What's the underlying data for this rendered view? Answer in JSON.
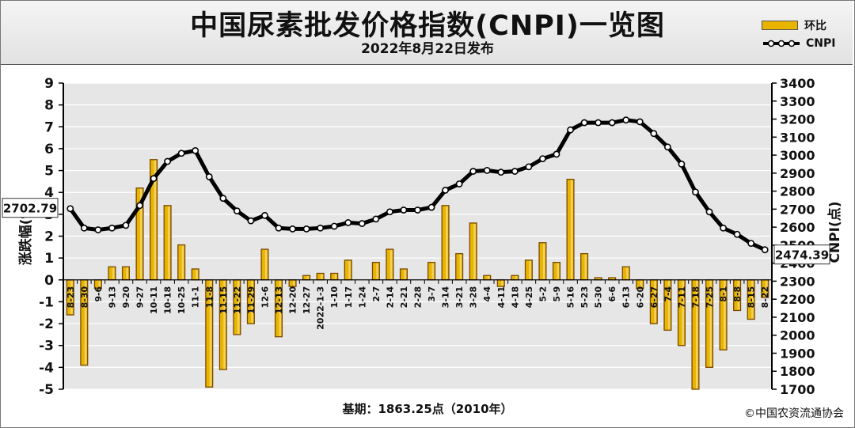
{
  "header": {
    "title": "中国尿素批发价格指数(CNPI)一览图",
    "subtitle": "2022年8月22日发布"
  },
  "legend": {
    "bar_label": "环比",
    "line_label": "CNPI"
  },
  "footer": {
    "base": "基期：1863.25点（2010年）",
    "copyright": "©中国农资流通协会"
  },
  "colors": {
    "bar_fill": "#e8b400",
    "bar_dark": "#7a4a00",
    "line": "#000000",
    "marker": "#ffffff",
    "plot_bg": "#e6e6e6"
  },
  "chart_data": {
    "type": "bar+line",
    "x_labels": [
      "8-23",
      "8-30",
      "9-6",
      "9-13",
      "9-20",
      "9-27",
      "10-11",
      "10-18",
      "10-25",
      "11-1",
      "11-8",
      "11-15",
      "11-22",
      "11-29",
      "12-6",
      "12-13",
      "12-20",
      "12-27",
      "2022-1-3",
      "1-10",
      "1-17",
      "1-24",
      "2-7",
      "2-14",
      "2-21",
      "2-28",
      "3-7",
      "3-14",
      "3-21",
      "3-28",
      "4-4",
      "4-11",
      "4-18",
      "4-25",
      "5-2",
      "5-9",
      "5-16",
      "5-23",
      "5-30",
      "6-6",
      "6-13",
      "6-20",
      "6-27",
      "7-4",
      "7-11",
      "7-18",
      "7-25",
      "8-1",
      "8-8",
      "8-15",
      "8-22"
    ],
    "series": [
      {
        "name": "环比",
        "axis": "left",
        "type": "bar",
        "values": [
          -1.6,
          -3.9,
          -0.4,
          0.6,
          0.6,
          4.2,
          5.5,
          3.4,
          1.6,
          0.5,
          -4.9,
          -4.1,
          -2.5,
          -2.0,
          1.4,
          -2.6,
          -0.3,
          0.2,
          0.3,
          0.3,
          0.9,
          0.0,
          0.8,
          1.4,
          0.5,
          0.0,
          0.8,
          3.4,
          1.2,
          2.6,
          0.2,
          -0.3,
          0.2,
          0.9,
          1.7,
          0.8,
          4.6,
          1.2,
          0.1,
          0.1,
          0.6,
          -0.4,
          -2.0,
          -2.3,
          -3.0,
          -5.0,
          -4.0,
          -3.2,
          -1.4,
          -1.8,
          -0.8
        ]
      },
      {
        "name": "CNPI",
        "axis": "right",
        "type": "line",
        "values": [
          2702.79,
          2595,
          2585,
          2595,
          2610,
          2720,
          2870,
          2965,
          3010,
          3025,
          2880,
          2760,
          2690,
          2635,
          2665,
          2595,
          2590,
          2590,
          2595,
          2605,
          2625,
          2620,
          2645,
          2685,
          2695,
          2695,
          2710,
          2805,
          2840,
          2910,
          2915,
          2905,
          2910,
          2935,
          2980,
          3005,
          3140,
          3180,
          3180,
          3180,
          3195,
          3185,
          3120,
          3045,
          2950,
          2795,
          2685,
          2595,
          2560,
          2510,
          2474.39
        ]
      }
    ],
    "y_left": {
      "label": "涨跌幅(%)",
      "min": -5,
      "max": 9,
      "ticks": [
        -5,
        -4,
        -3,
        -2,
        -1,
        0,
        1,
        2,
        3,
        4,
        5,
        6,
        7,
        8,
        9
      ]
    },
    "y_right": {
      "label": "CNPI(点)",
      "min": 1700,
      "max": 3400,
      "ticks": [
        1700,
        1800,
        1900,
        2000,
        2100,
        2200,
        2300,
        2400,
        2500,
        2600,
        2700,
        2800,
        2900,
        3000,
        3100,
        3200,
        3300,
        3400
      ]
    },
    "annotations": {
      "start_value": "2702.79",
      "end_value": "2474.39"
    },
    "grid": true,
    "legend_position": "top-right"
  }
}
